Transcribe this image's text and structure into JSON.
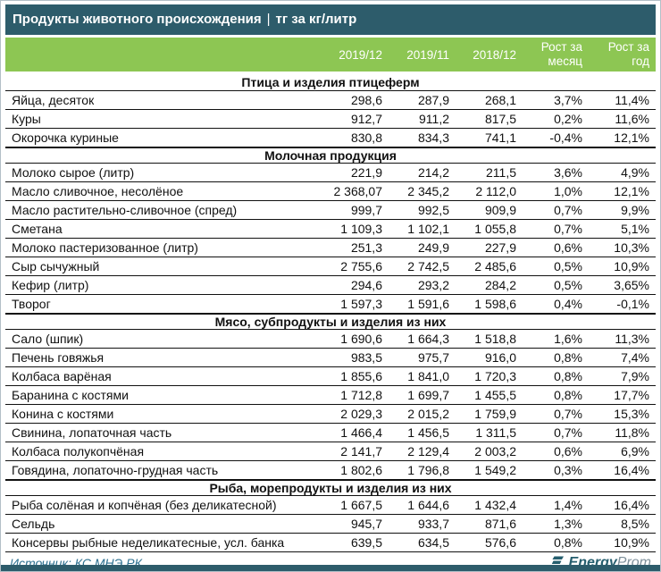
{
  "colors": {
    "title_bar_bg": "#2d5c6b",
    "header_bg": "#8dc653",
    "header_text": "#ffffff",
    "source_text": "#2e7191",
    "logo_teal": "#255e6e",
    "logo_gray": "#7e909b",
    "row_line": "#111111"
  },
  "title": {
    "name": "Продукты животного происхождения",
    "sep": "|",
    "unit": "тг за кг/литр"
  },
  "header": {
    "dates": [
      "2019/12",
      "2019/11",
      "2018/12"
    ],
    "growth": [
      {
        "l1": "Рост за",
        "l2": "месяц"
      },
      {
        "l1": "Рост за",
        "l2": "год"
      }
    ]
  },
  "chart_data": {
    "type": "table",
    "title": "Продукты животного происхождения | тг за кг/литр",
    "columns": [
      "",
      "2019/12",
      "2019/11",
      "2018/12",
      "Рост за месяц",
      "Рост за год"
    ],
    "sections": [
      {
        "name": "Птица и изделия птицеферм",
        "rows": [
          {
            "name": "Яйца, десяток",
            "values": [
              "298,6",
              "287,9",
              "268,1",
              "3,7%",
              "11,4%"
            ]
          },
          {
            "name": "Куры",
            "values": [
              "912,7",
              "911,2",
              "817,5",
              "0,2%",
              "11,6%"
            ]
          },
          {
            "name": "Окорочка куриные",
            "values": [
              "830,8",
              "834,3",
              "741,1",
              "-0,4%",
              "12,1%"
            ]
          }
        ]
      },
      {
        "name": "Молочная продукция",
        "rows": [
          {
            "name": "Молоко сырое (литр)",
            "values": [
              "221,9",
              "214,2",
              "211,5",
              "3,6%",
              "4,9%"
            ]
          },
          {
            "name": "Масло сливочное, несолёное",
            "values": [
              "2 368,07",
              "2 345,2",
              "2 112,0",
              "1,0%",
              "12,1%"
            ]
          },
          {
            "name": "Масло растительно-сливочное (спред)",
            "values": [
              "999,7",
              "992,5",
              "909,9",
              "0,7%",
              "9,9%"
            ]
          },
          {
            "name": "Сметана",
            "values": [
              "1 109,3",
              "1 102,1",
              "1 055,8",
              "0,7%",
              "5,1%"
            ]
          },
          {
            "name": "Молоко пастеризованное (литр)",
            "values": [
              "251,3",
              "249,9",
              "227,9",
              "0,6%",
              "10,3%"
            ]
          },
          {
            "name": "Сыр сычужный",
            "values": [
              "2 755,6",
              "2 742,5",
              "2 485,6",
              "0,5%",
              "10,9%"
            ]
          },
          {
            "name": "Кефир (литр)",
            "values": [
              "294,6",
              "293,2",
              "284,2",
              "0,5%",
              "3,65%"
            ]
          },
          {
            "name": "Творог",
            "values": [
              "1 597,3",
              "1 591,6",
              "1 598,6",
              "0,4%",
              "-0,1%"
            ]
          }
        ]
      },
      {
        "name": "Мясо, субпродукты и изделия из них",
        "rows": [
          {
            "name": "Сало (шпик)",
            "values": [
              "1 690,6",
              "1 664,3",
              "1 518,8",
              "1,6%",
              "11,3%"
            ]
          },
          {
            "name": "Печень говяжья",
            "values": [
              "983,5",
              "975,7",
              "916,0",
              "0,8%",
              "7,4%"
            ]
          },
          {
            "name": "Колбаса варёная",
            "values": [
              "1 855,6",
              "1 841,0",
              "1 720,3",
              "0,8%",
              "7,9%"
            ]
          },
          {
            "name": "Баранина с костями",
            "values": [
              "1 712,8",
              "1 699,7",
              "1 455,5",
              "0,8%",
              "17,7%"
            ]
          },
          {
            "name": "Конина с костями",
            "values": [
              "2 029,3",
              "2 015,2",
              "1 759,9",
              "0,7%",
              "15,3%"
            ]
          },
          {
            "name": "Свинина, лопаточная часть",
            "values": [
              "1 466,4",
              "1 456,5",
              "1 311,5",
              "0,7%",
              "11,8%"
            ]
          },
          {
            "name": "Колбаса полукопчёная",
            "values": [
              "2 141,7",
              "2 129,4",
              "2 003,2",
              "0,6%",
              "6,9%"
            ]
          },
          {
            "name": "Говядина, лопаточно-грудная часть",
            "values": [
              "1 802,6",
              "1 796,8",
              "1 549,2",
              "0,3%",
              "16,4%"
            ]
          }
        ]
      },
      {
        "name": "Рыба, морепродукты и изделия из них",
        "rows": [
          {
            "name": "Рыба солёная и копчёная (без деликатесной)",
            "values": [
              "1 667,5",
              "1 644,6",
              "1 432,4",
              "1,4%",
              "16,4%"
            ]
          },
          {
            "name": "Сельдь",
            "values": [
              "945,7",
              "933,7",
              "871,6",
              "1,3%",
              "8,5%"
            ]
          },
          {
            "name": "Консервы рыбные неделикатесные, усл. банка",
            "values": [
              "639,5",
              "634,5",
              "576,6",
              "0,8%",
              "10,9%"
            ]
          }
        ]
      }
    ]
  },
  "footer": {
    "source": "Источник: КС МНЭ РК",
    "logo": {
      "energy": "Energy",
      "prom": "Prom"
    }
  }
}
